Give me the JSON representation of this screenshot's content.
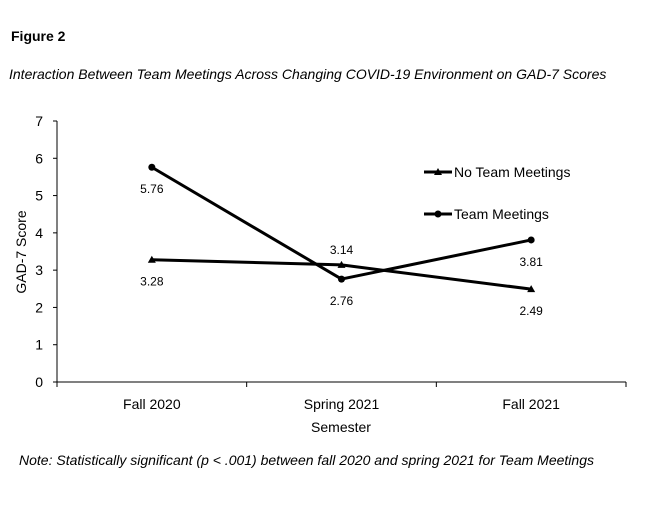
{
  "figure_label": "Figure 2",
  "figure_title": "Interaction Between Team Meetings Across Changing COVID-19 Environment on GAD-7 Scores",
  "note": "Note: Statistically significant (p < .001) between fall 2020 and spring 2021 for Team Meetings",
  "chart_data": {
    "type": "line",
    "categories": [
      "Fall 2020",
      "Spring 2021",
      "Fall 2021"
    ],
    "series": [
      {
        "name": "No Team Meetings",
        "marker": "triangle",
        "values": [
          3.28,
          3.14,
          2.49
        ],
        "labels": [
          "3.28",
          "3.14",
          "2.49"
        ]
      },
      {
        "name": "Team Meetings",
        "marker": "circle",
        "values": [
          5.76,
          2.76,
          3.81
        ],
        "labels": [
          "5.76",
          "2.76",
          "3.81"
        ]
      }
    ],
    "xlabel": "Semester",
    "ylabel": "GAD-7 Score",
    "ylim": [
      0,
      7
    ],
    "yticks": [
      "0",
      "1",
      "2",
      "3",
      "4",
      "5",
      "6",
      "7"
    ],
    "grid": false,
    "legend_position": "right",
    "line_color": "#000000"
  }
}
